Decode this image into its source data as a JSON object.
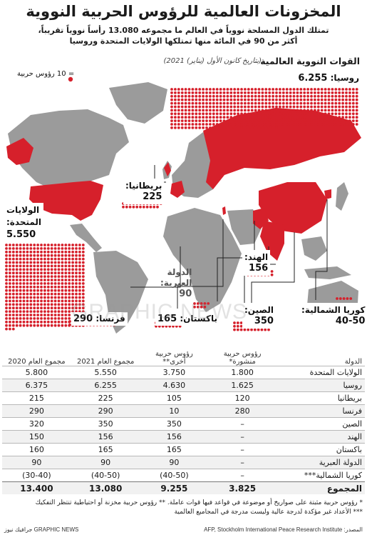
{
  "title": "المخزونات العالمية للرؤوس الحربية النووية",
  "subtitle_1": "تمتلك الدول المسلحة نووياً في العالم ما مجموعه 13.080 رأساً نووياً تقريباً،",
  "subtitle_2": "أكثر من 90 في المائة منها تمتلكها الولايات المتحدة وروسيا",
  "section_title": "القوات النووية العالمية",
  "section_date": "(بتاريخ كانون الأول (يناير) 2021)",
  "legend": "= 10 رؤوس حربية",
  "watermark": "GRAPHIC NEWS",
  "colors": {
    "red": "#d6202b",
    "land": "#9b9b9b",
    "land_highlight": "#d6202b",
    "water": "#ffffff"
  },
  "labels": {
    "russia": {
      "name": "روسيا:",
      "value": "6.255"
    },
    "usa": {
      "name_1": "الولايات",
      "name_2": "المتحدة:",
      "value": "5.550"
    },
    "uk": {
      "name": "بريطانيا:",
      "value": "225"
    },
    "france": {
      "name": "فرنسا:",
      "value": "290"
    },
    "israel": {
      "name_1": "الدولة",
      "name_2": "العبرية:",
      "value": "90"
    },
    "pakistan": {
      "name": "باكستان:",
      "value": "165"
    },
    "china": {
      "name": "الصين:",
      "value": "350"
    },
    "india": {
      "name": "الهند:",
      "value": "156"
    },
    "north_korea": {
      "name": "كوريا الشمالية:",
      "value": "40-50"
    }
  },
  "chart_data": {
    "type": "table",
    "title": "القوات النووية العالمية",
    "columns": [
      "الدولة",
      "رؤوس حربية منشورة*",
      "رؤوس حربية أخرى**",
      "مجموع العام 2021",
      "مجموع العام 2020"
    ],
    "header": {
      "country": "الدولة",
      "deployed": "رؤوس حربية منشورة*",
      "other": "رؤوس حربية أخرى**",
      "total_2021": "مجموع العام 2021",
      "total_2020": "مجموع العام 2020"
    },
    "rows": [
      {
        "country": "الولايات المتحدة",
        "deployed": "1.800",
        "other": "3.750",
        "total_2021": "5.550",
        "total_2020": "5.800"
      },
      {
        "country": "روسيا",
        "deployed": "1.625",
        "other": "4.630",
        "total_2021": "6.255",
        "total_2020": "6.375"
      },
      {
        "country": "بريطانيا",
        "deployed": "120",
        "other": "105",
        "total_2021": "225",
        "total_2020": "215"
      },
      {
        "country": "فرنسا",
        "deployed": "280",
        "other": "10",
        "total_2021": "290",
        "total_2020": "290"
      },
      {
        "country": "الصين",
        "deployed": "–",
        "other": "350",
        "total_2021": "350",
        "total_2020": "320"
      },
      {
        "country": "الهند",
        "deployed": "–",
        "other": "156",
        "total_2021": "156",
        "total_2020": "150"
      },
      {
        "country": "باكستان",
        "deployed": "–",
        "other": "165",
        "total_2021": "165",
        "total_2020": "160"
      },
      {
        "country": "الدولة العبرية",
        "deployed": "–",
        "other": "90",
        "total_2021": "90",
        "total_2020": "90"
      },
      {
        "country": "كوريا الشمالية***",
        "deployed": "–",
        "other": "(40-50)",
        "total_2021": "(40-50)",
        "total_2020": "(30-40)"
      }
    ],
    "total": {
      "country": "المجموع",
      "deployed": "3.825",
      "other": "9.255",
      "total_2021": "13.080",
      "total_2020": "13.400"
    },
    "dot_unit": 10,
    "dots": {
      "russia": 6255,
      "usa": 5550,
      "uk": 225,
      "france": 290,
      "israel": 90,
      "pakistan": 165,
      "china": 350,
      "india": 156,
      "north_korea": 45
    }
  },
  "footnotes": {
    "f1": "* رؤوس حربية مثبتة على صواريخ أو موضوعة في قواعد فيها قوات عاملة. ** رؤوس حربية مخزنة أو احتياطية تنتظر التفكيك",
    "f2": "*** الأعداد غير مؤكدة لدرجة عالية وليست مدرجة في المجاميع العالمية"
  },
  "credits": {
    "source": "المصدر: AFP, Stockholm International Peace Research Institute",
    "agency": "GRAPHIC NEWS جرافيك نيوز"
  }
}
